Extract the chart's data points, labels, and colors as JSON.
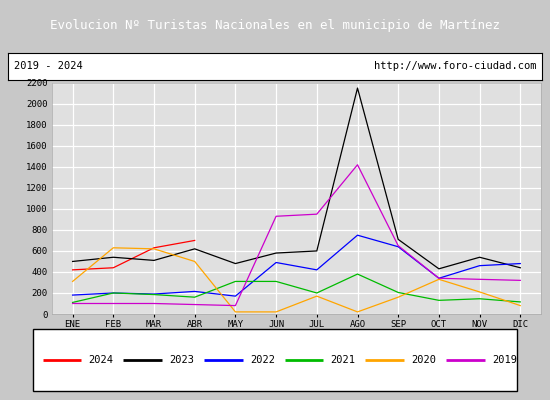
{
  "title": "Evolucion Nº Turistas Nacionales en el municipio de Martínez",
  "subtitle_left": "2019 - 2024",
  "subtitle_right": "http://www.foro-ciudad.com",
  "title_bg": "#4472C4",
  "outer_bg": "#C8C8C8",
  "plot_bg": "#E0E0E0",
  "grid_color": "#FFFFFF",
  "months": [
    "ENE",
    "FEB",
    "MAR",
    "ABR",
    "MAY",
    "JUN",
    "JUL",
    "AGO",
    "SEP",
    "OCT",
    "NOV",
    "DIC"
  ],
  "series": {
    "2024": [
      420,
      440,
      630,
      700,
      null,
      null,
      null,
      null,
      null,
      null,
      null,
      null
    ],
    "2023": [
      500,
      540,
      510,
      620,
      480,
      580,
      600,
      2150,
      710,
      430,
      540,
      440
    ],
    "2022": [
      180,
      200,
      190,
      215,
      170,
      490,
      420,
      750,
      640,
      340,
      460,
      480
    ],
    "2021": [
      110,
      200,
      185,
      160,
      310,
      310,
      200,
      380,
      205,
      130,
      145,
      115
    ],
    "2020": [
      310,
      630,
      620,
      500,
      20,
      20,
      170,
      20,
      160,
      330,
      210,
      80
    ],
    "2019": [
      100,
      100,
      100,
      90,
      80,
      930,
      950,
      1420,
      650,
      340,
      330,
      320
    ]
  },
  "colors": {
    "2024": "#FF0000",
    "2023": "#000000",
    "2022": "#0000FF",
    "2021": "#00BB00",
    "2020": "#FFA500",
    "2019": "#CC00CC"
  },
  "ylim": [
    0,
    2200
  ],
  "yticks": [
    0,
    200,
    400,
    600,
    800,
    1000,
    1200,
    1400,
    1600,
    1800,
    2000,
    2200
  ],
  "legend_years": [
    "2024",
    "2023",
    "2022",
    "2021",
    "2020",
    "2019"
  ]
}
